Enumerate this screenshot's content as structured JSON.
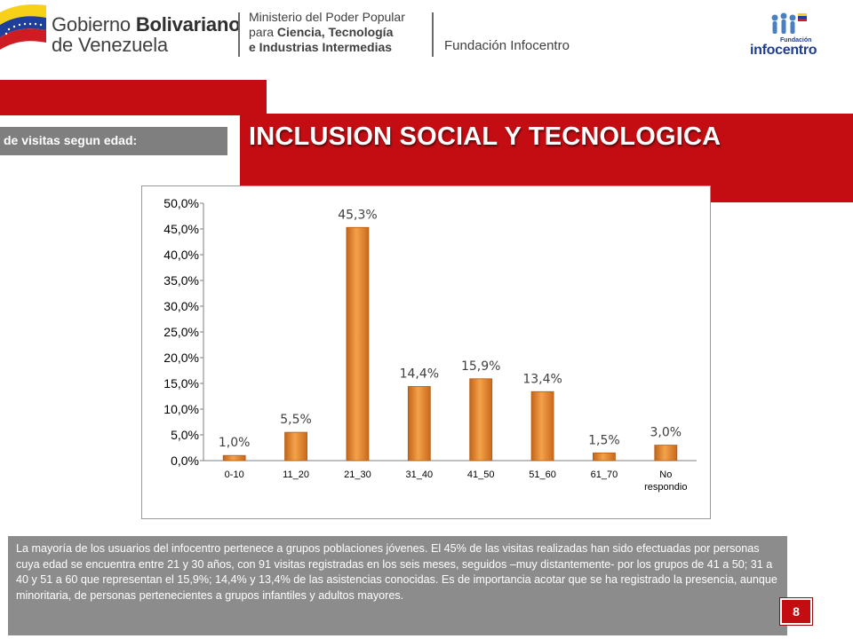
{
  "header": {
    "gov_line1_plain": "Gobierno ",
    "gov_line1_bold": "Bolivariano",
    "gov_line2": "de Venezuela",
    "ministry_line1": "Ministerio del Poder Popular",
    "ministry_line2_plain": "para ",
    "ministry_line2_bold": "Ciencia, Tecnología",
    "ministry_line3_bold": "e Industrias Intermedias",
    "foundation": "Fundación Infocentro",
    "logo_small": "Fundación",
    "logo_main": "infocentro"
  },
  "slide": {
    "title": "INCLUSION SOCIAL Y TECNOLOGICA",
    "subtitle": "de visitas segun edad:",
    "page_number": "8"
  },
  "chart_data": {
    "type": "bar",
    "categories": [
      "0-10",
      "11_20",
      "21_30",
      "31_40",
      "41_50",
      "51_60",
      "61_70",
      "No respondio"
    ],
    "values": [
      1.0,
      5.5,
      45.3,
      14.4,
      15.9,
      13.4,
      1.5,
      3.0
    ],
    "data_labels": [
      "1,0%",
      "5,5%",
      "45,3%",
      "14,4%",
      "15,9%",
      "13,4%",
      "1,5%",
      "3,0%"
    ],
    "y_ticks": [
      "0,0%",
      "5,0%",
      "10,0%",
      "15,0%",
      "20,0%",
      "25,0%",
      "30,0%",
      "35,0%",
      "40,0%",
      "45,0%",
      "50,0%"
    ],
    "ylim": [
      0,
      50
    ],
    "grid": false,
    "bar_color": "#e8892a"
  },
  "description": "La mayoría de los usuarios del infocentro pertenece a grupos poblaciones jóvenes. El 45% de las visitas realizadas han sido efectuadas por personas cuya edad se encuentra entre 21 y 30 años, con 91 visitas registradas en los seis meses, seguidos –muy distantemente- por los grupos de 41 a 50; 31 a 40 y 51 a 60 que representan el 15,9%; 14,4% y 13,4% de las asistencias conocidas. Es de importancia acotar que se ha registrado la presencia, aunque minoritaria, de personas pertenecientes a grupos infantiles y adultos mayores."
}
